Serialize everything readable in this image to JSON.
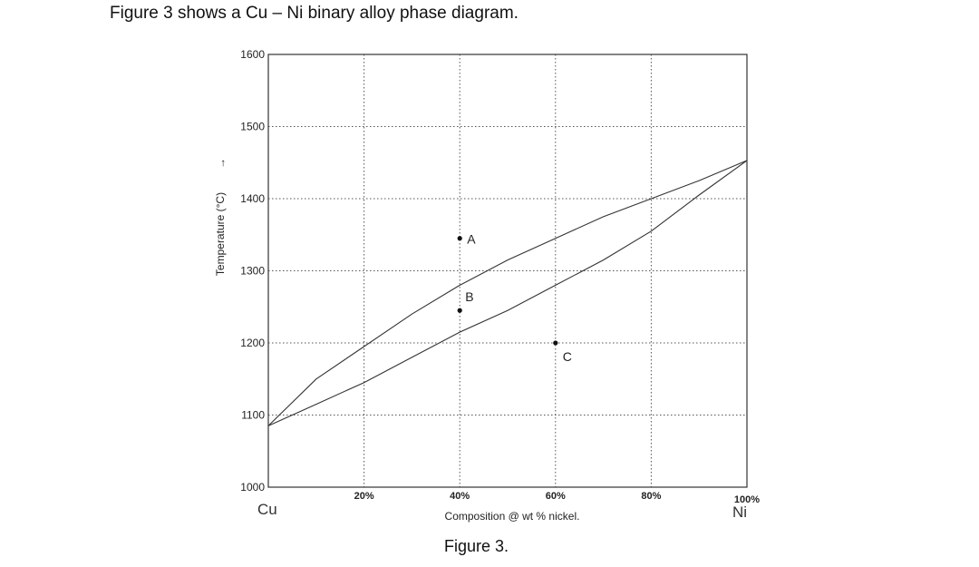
{
  "intro_text": "Figure 3 shows a Cu – Ni binary alloy phase diagram.",
  "caption": "Figure 3.",
  "chart_data": {
    "type": "line",
    "xlabel": "Composition @ wt % nickel.",
    "ylabel": "Temperature (°C)",
    "y_arrow": "→",
    "xlim": [
      0,
      100
    ],
    "ylim": [
      1000,
      1600
    ],
    "x_ticks": [
      {
        "value": 20,
        "label": "20%"
      },
      {
        "value": 40,
        "label": "40%"
      },
      {
        "value": 60,
        "label": "60%"
      },
      {
        "value": 80,
        "label": "80%"
      },
      {
        "value": 100,
        "label": "100%"
      }
    ],
    "y_ticks": [
      {
        "value": 1000,
        "label": "1000"
      },
      {
        "value": 1100,
        "label": "1100"
      },
      {
        "value": 1200,
        "label": "1200"
      },
      {
        "value": 1300,
        "label": "1300"
      },
      {
        "value": 1400,
        "label": "1400"
      },
      {
        "value": 1500,
        "label": "1500"
      },
      {
        "value": 1600,
        "label": "1600"
      }
    ],
    "x_end_labels": {
      "left": "Cu",
      "right": "Ni"
    },
    "grid": true,
    "series": [
      {
        "curve": "liquidus",
        "x": [
          0,
          10,
          20,
          30,
          40,
          50,
          60,
          70,
          80,
          90,
          100
        ],
        "y": [
          1085,
          1150,
          1195,
          1240,
          1280,
          1315,
          1345,
          1375,
          1400,
          1425,
          1453
        ]
      },
      {
        "curve": "solidus",
        "x": [
          0,
          10,
          20,
          30,
          40,
          50,
          60,
          70,
          80,
          90,
          100
        ],
        "y": [
          1085,
          1115,
          1145,
          1180,
          1215,
          1245,
          1280,
          1315,
          1355,
          1405,
          1453
        ]
      }
    ],
    "points": [
      {
        "label": "A",
        "x": 40,
        "y": 1345
      },
      {
        "label": "B",
        "x": 40,
        "y": 1245
      },
      {
        "label": "C",
        "x": 60,
        "y": 1200
      }
    ]
  }
}
